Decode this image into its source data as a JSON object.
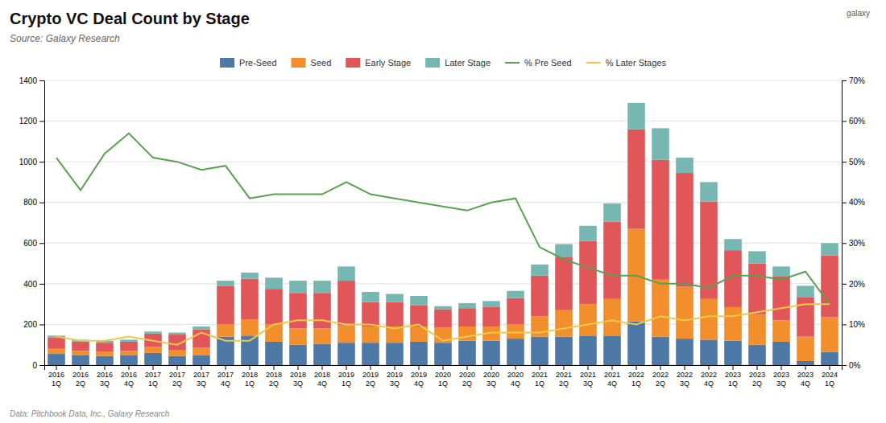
{
  "chart_data": {
    "type": "bar",
    "title": "Crypto VC Deal Count by Stage",
    "subtitle": "Source: Galaxy Research",
    "annotations": [
      "Data: Pitchbook Data, Inc., Galaxy Research",
      "galaxy"
    ],
    "stacked": true,
    "grid": true,
    "legend": "top",
    "categories": [
      "2016\n1Q",
      "2016\n2Q",
      "2016\n3Q",
      "2016\n4Q",
      "2017\n1Q",
      "2017\n2Q",
      "2017\n3Q",
      "2017\n4Q",
      "2018\n1Q",
      "2018\n2Q",
      "2018\n3Q",
      "2018\n4Q",
      "2019\n1Q",
      "2019\n2Q",
      "2019\n3Q",
      "2019\n4Q",
      "2020\n1Q",
      "2020\n2Q",
      "2020\n3Q",
      "2020\n4Q",
      "2021\n1Q",
      "2021\n2Q",
      "2021\n3Q",
      "2021\n4Q",
      "2022\n1Q",
      "2022\n2Q",
      "2022\n3Q",
      "2022\n4Q",
      "2023\n1Q",
      "2023\n2Q",
      "2023\n3Q",
      "2023\n4Q",
      "2024\n1Q"
    ],
    "series": [
      {
        "name": "Pre-Seed",
        "type": "bar",
        "values": [
          55,
          50,
          45,
          50,
          60,
          45,
          50,
          140,
          145,
          115,
          100,
          105,
          110,
          110,
          110,
          115,
          110,
          120,
          120,
          130,
          140,
          140,
          145,
          145,
          215,
          140,
          130,
          125,
          120,
          100,
          115,
          20,
          65
        ]
      },
      {
        "name": "Seed",
        "type": "bar",
        "values": [
          25,
          20,
          20,
          20,
          30,
          30,
          35,
          60,
          80,
          85,
          80,
          75,
          85,
          80,
          80,
          75,
          75,
          70,
          70,
          70,
          100,
          130,
          155,
          180,
          455,
          280,
          255,
          200,
          165,
          150,
          105,
          120,
          170
        ]
      },
      {
        "name": "Early Stage",
        "type": "bar",
        "values": [
          55,
          45,
          45,
          45,
          65,
          75,
          90,
          190,
          200,
          175,
          175,
          175,
          220,
          120,
          120,
          105,
          90,
          90,
          95,
          130,
          200,
          260,
          310,
          380,
          490,
          590,
          560,
          480,
          280,
          250,
          215,
          195,
          305
        ]
      },
      {
        "name": "Later Stage",
        "type": "bar",
        "values": [
          10,
          10,
          10,
          10,
          10,
          10,
          15,
          25,
          30,
          55,
          60,
          60,
          70,
          50,
          40,
          45,
          15,
          25,
          30,
          35,
          55,
          65,
          75,
          90,
          130,
          155,
          75,
          95,
          55,
          60,
          50,
          55,
          60
        ]
      },
      {
        "name": "% Pre Seed",
        "type": "line",
        "axis": "y2",
        "values": [
          51,
          43,
          52,
          57,
          51,
          50,
          48,
          49,
          41,
          42,
          42,
          42,
          45,
          42,
          41,
          40,
          39,
          38,
          40,
          41,
          29,
          26,
          24,
          22,
          22,
          20,
          20,
          19,
          22,
          22,
          21,
          23,
          15
        ]
      },
      {
        "name": "% Later Stages",
        "type": "line",
        "axis": "y2",
        "values": [
          7,
          6,
          6,
          7,
          6,
          5,
          8,
          6,
          6,
          10,
          11,
          11,
          10,
          10,
          9,
          10,
          6,
          7,
          8,
          8,
          8,
          9,
          10,
          11,
          10,
          12,
          11,
          12,
          12,
          13,
          14,
          15,
          15
        ]
      }
    ],
    "ylim": [
      0,
      1400
    ],
    "yticks": [
      0,
      200,
      400,
      600,
      800,
      1000,
      1200,
      1400
    ],
    "y2lim": [
      0,
      70
    ],
    "y2ticks": [
      {
        "value": 0,
        "label": "0%"
      },
      {
        "value": 10,
        "label": "10%"
      },
      {
        "value": 20,
        "label": "20%"
      },
      {
        "value": 30,
        "label": "30%"
      },
      {
        "value": 40,
        "label": "40%"
      },
      {
        "value": 50,
        "label": "50%"
      },
      {
        "value": 60,
        "label": "60%"
      },
      {
        "value": 70,
        "label": "70%"
      }
    ]
  }
}
